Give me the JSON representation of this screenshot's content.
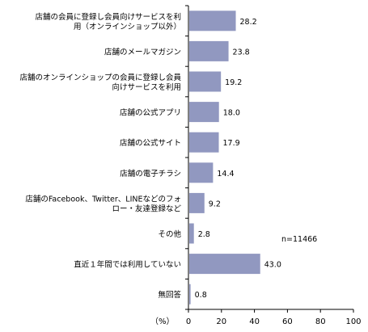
{
  "chart_data": {
    "type": "bar",
    "orientation": "horizontal",
    "categories": [
      [
        "店舗の会員に登録し会員向けサービスを利",
        "用（オンラインショップ以外）"
      ],
      [
        "店舗のメールマガジン"
      ],
      [
        "店舗のオンラインショップの会員に登録し会員",
        "向けサービスを利用"
      ],
      [
        "店舗の公式アプリ"
      ],
      [
        "店舗の公式サイト"
      ],
      [
        "店舗の電子チラシ"
      ],
      [
        "店舗のFacebook、Twitter、LINEなどのフォ",
        "ロー・友達登録など"
      ],
      [
        "その他"
      ],
      [
        "直近１年間では利用していない"
      ],
      [
        "無回答"
      ]
    ],
    "values": [
      28.2,
      23.8,
      19.2,
      18.0,
      17.9,
      14.4,
      9.2,
      2.8,
      43.0,
      0.8
    ],
    "value_labels": [
      "28.2",
      "23.8",
      "19.2",
      "18.0",
      "17.9",
      "14.4",
      "9.2",
      "2.8",
      "43.0",
      "0.8"
    ],
    "xlim": [
      0,
      100
    ],
    "xticks": [
      "0",
      "20",
      "40",
      "60",
      "80",
      "100"
    ],
    "xlabel": "（%）",
    "annotation": "n=11466",
    "bar_color": "#9198c0",
    "grid": false,
    "title": ""
  }
}
